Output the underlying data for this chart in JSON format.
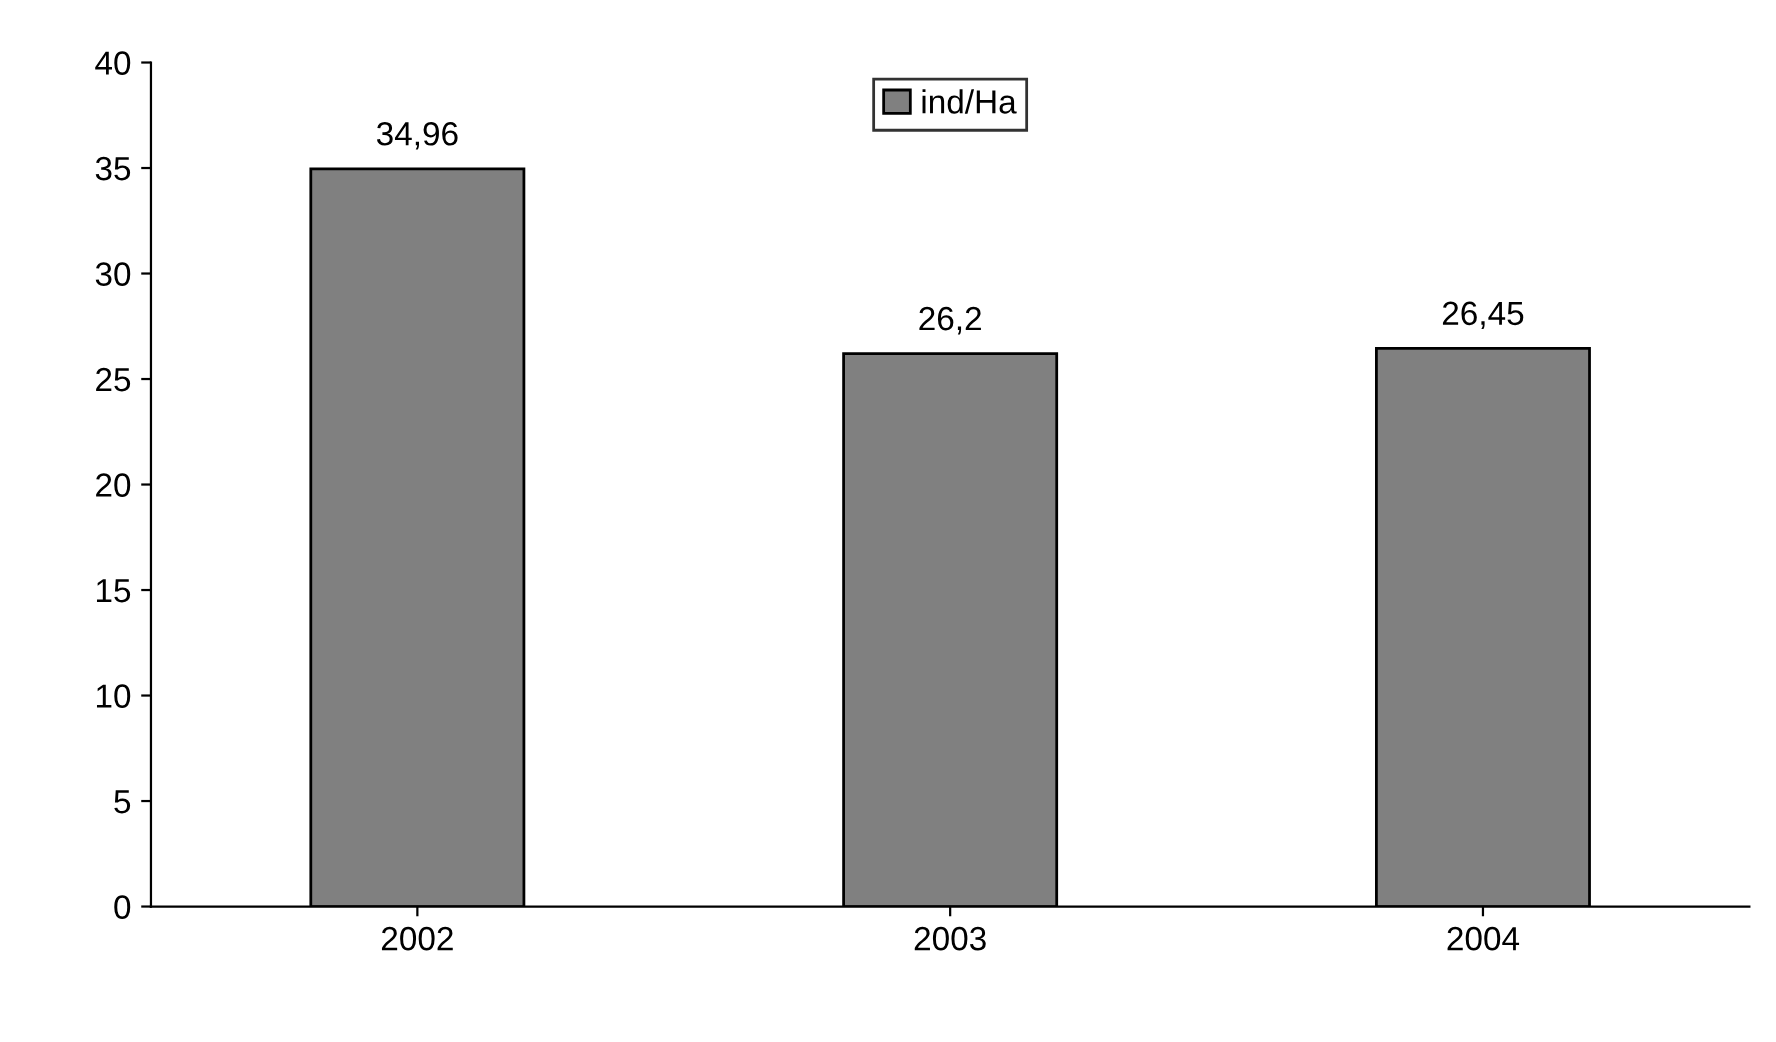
{
  "chart_data": {
    "type": "bar",
    "categories": [
      "2002",
      "2003",
      "2004"
    ],
    "series": [
      {
        "name": "ind/Ha",
        "color": "#808080",
        "values": [
          34.96,
          26.2,
          26.45
        ],
        "value_labels": [
          "34,96",
          "26,2",
          "26,45"
        ]
      }
    ],
    "ylim": [
      0,
      40
    ],
    "yticks": [
      0,
      5,
      10,
      15,
      20,
      25,
      30,
      35,
      40
    ],
    "grid": false,
    "legend": "top"
  }
}
